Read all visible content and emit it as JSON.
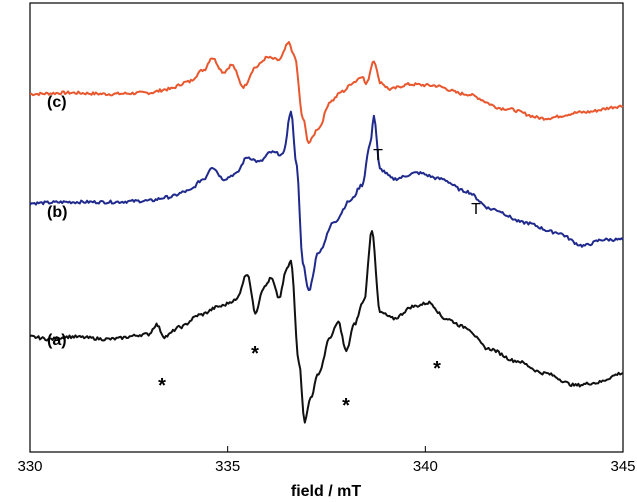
{
  "chart_data": {
    "type": "line",
    "xlabel": "field / mT",
    "ylabel": "",
    "xlim": [
      330,
      345
    ],
    "xticks": [
      330,
      335,
      340,
      345
    ],
    "yticks": [],
    "grid": false,
    "legend": "none",
    "series": [
      {
        "name": "(c)",
        "color": "#e8572e",
        "offset": 2.0,
        "points": [
          [
            330,
            0
          ],
          [
            331,
            0.01
          ],
          [
            332,
            0
          ],
          [
            333,
            0.01
          ],
          [
            333.5,
            0.04
          ],
          [
            334,
            0.1
          ],
          [
            334.4,
            0.2
          ],
          [
            334.6,
            0.3
          ],
          [
            334.9,
            0.18
          ],
          [
            335.1,
            0.24
          ],
          [
            335.4,
            0.06
          ],
          [
            335.7,
            0.22
          ],
          [
            336,
            0.3
          ],
          [
            336.3,
            0.28
          ],
          [
            336.55,
            0.42
          ],
          [
            336.7,
            0.3
          ],
          [
            336.9,
            -0.2
          ],
          [
            337.05,
            -0.4
          ],
          [
            337.3,
            -0.28
          ],
          [
            337.6,
            -0.06
          ],
          [
            337.9,
            0.02
          ],
          [
            338.2,
            0.1
          ],
          [
            338.4,
            0.15
          ],
          [
            338.5,
            0.08
          ],
          [
            338.7,
            0.28
          ],
          [
            338.85,
            0.1
          ],
          [
            339.1,
            0.04
          ],
          [
            339.6,
            0.08
          ],
          [
            340.2,
            0.07
          ],
          [
            341,
            0.0
          ],
          [
            342,
            -0.12
          ],
          [
            343,
            -0.2
          ],
          [
            344,
            -0.15
          ],
          [
            345,
            -0.1
          ]
        ]
      },
      {
        "name": "(b)",
        "color": "#1f2a8c",
        "offset": 1.1,
        "points": [
          [
            330,
            0
          ],
          [
            331,
            0.01
          ],
          [
            332,
            0.01
          ],
          [
            333,
            0.02
          ],
          [
            333.5,
            0.05
          ],
          [
            334,
            0.1
          ],
          [
            334.4,
            0.2
          ],
          [
            334.6,
            0.3
          ],
          [
            334.9,
            0.2
          ],
          [
            335.2,
            0.24
          ],
          [
            335.5,
            0.38
          ],
          [
            335.8,
            0.34
          ],
          [
            336.1,
            0.42
          ],
          [
            336.4,
            0.4
          ],
          [
            336.6,
            0.75
          ],
          [
            336.75,
            0.3
          ],
          [
            336.9,
            -0.5
          ],
          [
            337.05,
            -0.72
          ],
          [
            337.3,
            -0.4
          ],
          [
            337.7,
            -0.15
          ],
          [
            338.1,
            0.02
          ],
          [
            338.4,
            0.15
          ],
          [
            338.6,
            0.48
          ],
          [
            338.7,
            0.72
          ],
          [
            338.85,
            0.28
          ],
          [
            339.2,
            0.2
          ],
          [
            339.8,
            0.25
          ],
          [
            340.4,
            0.2
          ],
          [
            341,
            0.1
          ],
          [
            341.7,
            -0.05
          ],
          [
            342.5,
            -0.16
          ],
          [
            343.3,
            -0.24
          ],
          [
            344,
            -0.35
          ],
          [
            344.5,
            -0.3
          ],
          [
            345,
            -0.3
          ]
        ]
      },
      {
        "name": "(a)",
        "color": "#111111",
        "offset": 0,
        "points": [
          [
            330,
            0
          ],
          [
            330.5,
            -0.02
          ],
          [
            331,
            0.0
          ],
          [
            332,
            -0.02
          ],
          [
            333,
            0.02
          ],
          [
            333.2,
            0.1
          ],
          [
            333.4,
            0.0
          ],
          [
            333.8,
            0.08
          ],
          [
            334.3,
            0.18
          ],
          [
            334.8,
            0.25
          ],
          [
            335.2,
            0.3
          ],
          [
            335.5,
            0.52
          ],
          [
            335.7,
            0.2
          ],
          [
            335.9,
            0.4
          ],
          [
            336.1,
            0.48
          ],
          [
            336.3,
            0.32
          ],
          [
            336.5,
            0.56
          ],
          [
            336.6,
            0.62
          ],
          [
            336.8,
            -0.2
          ],
          [
            336.95,
            -0.7
          ],
          [
            337.1,
            -0.5
          ],
          [
            337.3,
            -0.3
          ],
          [
            337.6,
            0.0
          ],
          [
            337.8,
            0.12
          ],
          [
            338,
            -0.12
          ],
          [
            338.2,
            0.1
          ],
          [
            338.45,
            0.3
          ],
          [
            338.65,
            0.88
          ],
          [
            338.85,
            0.2
          ],
          [
            339.2,
            0.15
          ],
          [
            339.7,
            0.25
          ],
          [
            340.1,
            0.28
          ],
          [
            340.5,
            0.15
          ],
          [
            341,
            0.08
          ],
          [
            341.6,
            -0.1
          ],
          [
            342.3,
            -0.2
          ],
          [
            343,
            -0.3
          ],
          [
            343.8,
            -0.4
          ],
          [
            344.3,
            -0.38
          ],
          [
            345,
            -0.3
          ]
        ]
      }
    ],
    "annotations": [
      {
        "text": "T",
        "x": 338.85,
        "series": "(b)"
      },
      {
        "text": "T",
        "x": 341.2,
        "series": "(b)"
      },
      {
        "text": "*",
        "x": 333.5,
        "series": "(a)"
      },
      {
        "text": "*",
        "x": 335.8,
        "series": "(a)"
      },
      {
        "text": "*",
        "x": 338.0,
        "series": "(a)"
      },
      {
        "text": "*",
        "x": 340.3,
        "series": "(a)"
      }
    ]
  }
}
